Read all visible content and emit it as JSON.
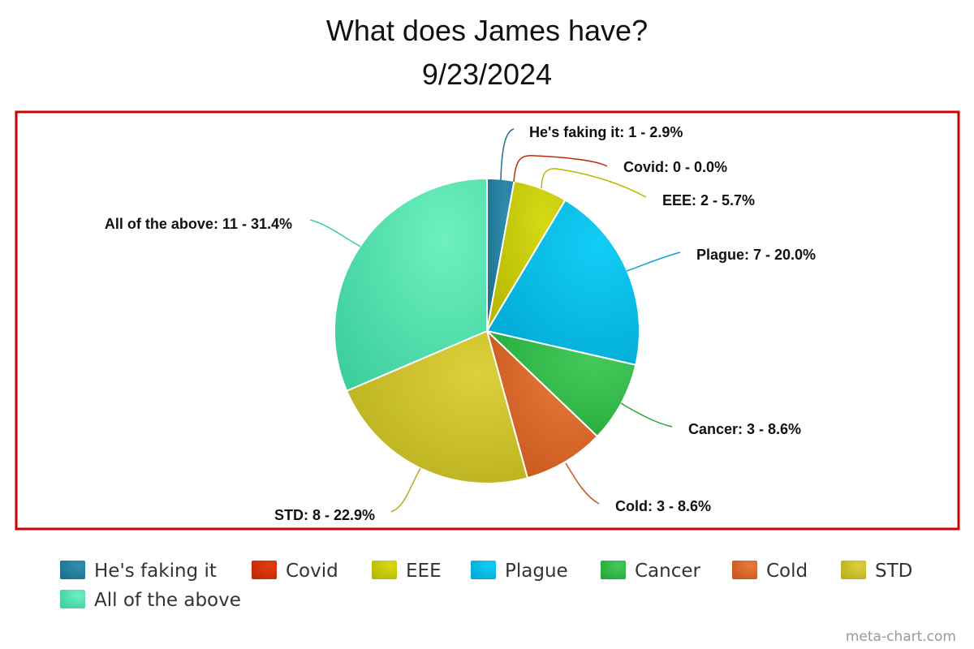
{
  "chart_data": {
    "type": "pie",
    "title": "What does James have?",
    "subtitle": "9/23/2024",
    "slices": [
      {
        "label": "He's faking it",
        "value": 1,
        "percent": 2.9,
        "color": "#1f6f8b",
        "color_light": "#2e8fae"
      },
      {
        "label": "Covid",
        "value": 0,
        "percent": 0.0,
        "color": "#c22a05",
        "color_light": "#e33c12"
      },
      {
        "label": "EEE",
        "value": 2,
        "percent": 5.7,
        "color": "#b5b800",
        "color_light": "#d6d915"
      },
      {
        "label": "Plague",
        "value": 7,
        "percent": 20.0,
        "color": "#00a9d4",
        "color_light": "#12cdf5"
      },
      {
        "label": "Cancer",
        "value": 3,
        "percent": 8.6,
        "color": "#22a83a",
        "color_light": "#45c95a"
      },
      {
        "label": "Cold",
        "value": 3,
        "percent": 8.6,
        "color": "#c7561a",
        "color_light": "#e87a3c"
      },
      {
        "label": "STD",
        "value": 8,
        "percent": 22.9,
        "color": "#b8ad1c",
        "color_light": "#dcd13c"
      },
      {
        "label": "All of the above",
        "value": 11,
        "percent": 31.4,
        "color": "#3dcf9c",
        "color_light": "#6ef0c0"
      }
    ],
    "data_labels": [
      "He's faking it: 1 - 2.9%",
      "Covid: 0 - 0.0%",
      "EEE: 2 - 5.7%",
      "Plague: 7 - 20.0%",
      "Cancer: 3 - 8.6%",
      "Cold: 3 - 8.6%",
      "STD: 8 - 22.9%",
      "All of the above: 11 - 31.4%"
    ],
    "legend_position": "bottom",
    "frame_color": "#cc0000"
  },
  "credit": "meta-chart.com"
}
